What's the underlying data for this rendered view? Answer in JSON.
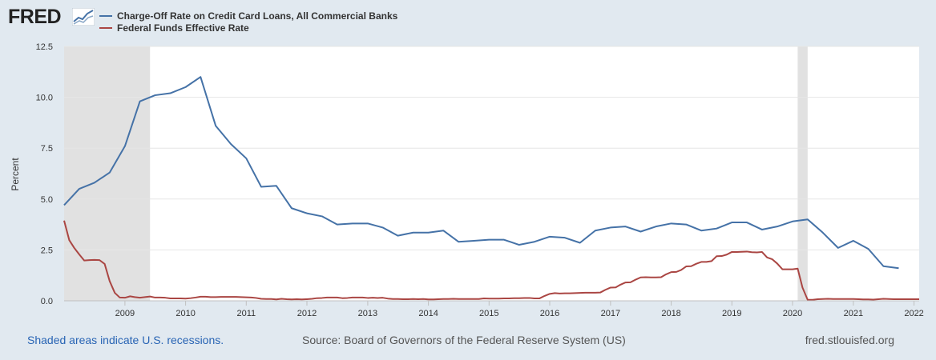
{
  "header": {
    "logo_text": "FRED",
    "logo_icon": "graph-icon"
  },
  "footer": {
    "recession_note": "Shaded areas indicate U.S. recessions.",
    "source": "Source: Board of Governors of the Federal Reserve System (US)",
    "site": "fred.stlouisfed.org"
  },
  "colors": {
    "background": "#e1e9f0",
    "plot": "#ffffff",
    "recession": "#e1e1e1",
    "series1": "#4572a7",
    "series2": "#aa4643"
  },
  "chart_data": {
    "type": "line",
    "ylabel": "Percent",
    "xlabel": "",
    "ylim": [
      0,
      12.5
    ],
    "xlim": [
      "2008-01-01",
      "2022-02-01"
    ],
    "yticks": [
      0,
      2.5,
      5,
      7.5,
      10,
      12.5
    ],
    "ytick_labels": [
      "0.0",
      "2.5",
      "5.0",
      "7.5",
      "10.0",
      "12.5"
    ],
    "xticks": [
      "2009-01-01",
      "2010-01-01",
      "2011-01-01",
      "2012-01-01",
      "2013-01-01",
      "2014-01-01",
      "2015-01-01",
      "2016-01-01",
      "2017-01-01",
      "2018-01-01",
      "2019-01-01",
      "2020-01-01",
      "2021-01-01",
      "2022-01-01"
    ],
    "xtick_labels": [
      "2009",
      "2010",
      "2011",
      "2012",
      "2013",
      "2014",
      "2015",
      "2016",
      "2017",
      "2018",
      "2019",
      "2020",
      "2021",
      "2022"
    ],
    "grid": true,
    "legend": "top-left",
    "recessions": [
      {
        "start": "2008-01-01",
        "end": "2009-06-01"
      },
      {
        "start": "2020-02-01",
        "end": "2020-04-01"
      }
    ],
    "series": [
      {
        "name": "Charge-Off Rate on Credit Card Loans, All Commercial Banks",
        "color": "#4572a7",
        "points": [
          [
            "2008-01-01",
            4.7
          ],
          [
            "2008-04-01",
            5.5
          ],
          [
            "2008-07-01",
            5.8
          ],
          [
            "2008-10-01",
            6.3
          ],
          [
            "2009-01-01",
            7.6
          ],
          [
            "2009-04-01",
            9.8
          ],
          [
            "2009-07-01",
            10.1
          ],
          [
            "2009-10-01",
            10.2
          ],
          [
            "2010-01-01",
            10.5
          ],
          [
            "2010-04-01",
            11.0
          ],
          [
            "2010-07-01",
            8.6
          ],
          [
            "2010-10-01",
            7.7
          ],
          [
            "2011-01-01",
            7.0
          ],
          [
            "2011-04-01",
            5.6
          ],
          [
            "2011-07-01",
            5.65
          ],
          [
            "2011-10-01",
            4.55
          ],
          [
            "2012-01-01",
            4.3
          ],
          [
            "2012-04-01",
            4.15
          ],
          [
            "2012-07-01",
            3.75
          ],
          [
            "2012-10-01",
            3.8
          ],
          [
            "2013-01-01",
            3.8
          ],
          [
            "2013-04-01",
            3.6
          ],
          [
            "2013-07-01",
            3.2
          ],
          [
            "2013-10-01",
            3.35
          ],
          [
            "2014-01-01",
            3.35
          ],
          [
            "2014-04-01",
            3.45
          ],
          [
            "2014-07-01",
            2.9
          ],
          [
            "2014-10-01",
            2.95
          ],
          [
            "2015-01-01",
            3.0
          ],
          [
            "2015-04-01",
            3.0
          ],
          [
            "2015-07-01",
            2.75
          ],
          [
            "2015-10-01",
            2.9
          ],
          [
            "2016-01-01",
            3.15
          ],
          [
            "2016-04-01",
            3.1
          ],
          [
            "2016-07-01",
            2.85
          ],
          [
            "2016-10-01",
            3.45
          ],
          [
            "2017-01-01",
            3.6
          ],
          [
            "2017-04-01",
            3.65
          ],
          [
            "2017-07-01",
            3.4
          ],
          [
            "2017-10-01",
            3.65
          ],
          [
            "2018-01-01",
            3.8
          ],
          [
            "2018-04-01",
            3.75
          ],
          [
            "2018-07-01",
            3.45
          ],
          [
            "2018-10-01",
            3.55
          ],
          [
            "2019-01-01",
            3.85
          ],
          [
            "2019-04-01",
            3.85
          ],
          [
            "2019-07-01",
            3.5
          ],
          [
            "2019-10-01",
            3.65
          ],
          [
            "2020-01-01",
            3.9
          ],
          [
            "2020-04-01",
            4.0
          ],
          [
            "2020-07-01",
            3.35
          ],
          [
            "2020-10-01",
            2.6
          ],
          [
            "2021-01-01",
            2.95
          ],
          [
            "2021-04-01",
            2.55
          ],
          [
            "2021-07-01",
            1.7
          ],
          [
            "2021-10-01",
            1.6
          ]
        ]
      },
      {
        "name": "Federal Funds Effective Rate",
        "color": "#aa4643",
        "points": [
          [
            "2008-01-01",
            3.94
          ],
          [
            "2008-02-01",
            2.98
          ],
          [
            "2008-03-01",
            2.61
          ],
          [
            "2008-04-01",
            2.28
          ],
          [
            "2008-05-01",
            1.98
          ],
          [
            "2008-06-01",
            2.0
          ],
          [
            "2008-07-01",
            2.01
          ],
          [
            "2008-08-01",
            2.0
          ],
          [
            "2008-09-01",
            1.81
          ],
          [
            "2008-10-01",
            0.97
          ],
          [
            "2008-11-01",
            0.39
          ],
          [
            "2008-12-01",
            0.16
          ],
          [
            "2009-01-01",
            0.15
          ],
          [
            "2009-02-01",
            0.22
          ],
          [
            "2009-03-01",
            0.18
          ],
          [
            "2009-04-01",
            0.15
          ],
          [
            "2009-05-01",
            0.18
          ],
          [
            "2009-06-01",
            0.21
          ],
          [
            "2009-07-01",
            0.16
          ],
          [
            "2009-08-01",
            0.16
          ],
          [
            "2009-09-01",
            0.15
          ],
          [
            "2009-10-01",
            0.12
          ],
          [
            "2009-11-01",
            0.12
          ],
          [
            "2009-12-01",
            0.12
          ],
          [
            "2010-01-01",
            0.11
          ],
          [
            "2010-02-01",
            0.13
          ],
          [
            "2010-03-01",
            0.16
          ],
          [
            "2010-04-01",
            0.2
          ],
          [
            "2010-05-01",
            0.2
          ],
          [
            "2010-06-01",
            0.18
          ],
          [
            "2010-07-01",
            0.18
          ],
          [
            "2010-08-01",
            0.19
          ],
          [
            "2010-09-01",
            0.19
          ],
          [
            "2010-10-01",
            0.19
          ],
          [
            "2010-11-01",
            0.19
          ],
          [
            "2010-12-01",
            0.18
          ],
          [
            "2011-01-01",
            0.17
          ],
          [
            "2011-02-01",
            0.16
          ],
          [
            "2011-03-01",
            0.14
          ],
          [
            "2011-04-01",
            0.1
          ],
          [
            "2011-05-01",
            0.09
          ],
          [
            "2011-06-01",
            0.09
          ],
          [
            "2011-07-01",
            0.07
          ],
          [
            "2011-08-01",
            0.1
          ],
          [
            "2011-09-01",
            0.08
          ],
          [
            "2011-10-01",
            0.07
          ],
          [
            "2011-11-01",
            0.08
          ],
          [
            "2011-12-01",
            0.07
          ],
          [
            "2012-01-01",
            0.08
          ],
          [
            "2012-02-01",
            0.1
          ],
          [
            "2012-03-01",
            0.13
          ],
          [
            "2012-04-01",
            0.14
          ],
          [
            "2012-05-01",
            0.16
          ],
          [
            "2012-06-01",
            0.16
          ],
          [
            "2012-07-01",
            0.16
          ],
          [
            "2012-08-01",
            0.13
          ],
          [
            "2012-09-01",
            0.14
          ],
          [
            "2012-10-01",
            0.16
          ],
          [
            "2012-11-01",
            0.16
          ],
          [
            "2012-12-01",
            0.16
          ],
          [
            "2013-01-01",
            0.14
          ],
          [
            "2013-02-01",
            0.15
          ],
          [
            "2013-03-01",
            0.14
          ],
          [
            "2013-04-01",
            0.15
          ],
          [
            "2013-05-01",
            0.11
          ],
          [
            "2013-06-01",
            0.09
          ],
          [
            "2013-07-01",
            0.09
          ],
          [
            "2013-08-01",
            0.08
          ],
          [
            "2013-09-01",
            0.08
          ],
          [
            "2013-10-01",
            0.09
          ],
          [
            "2013-11-01",
            0.08
          ],
          [
            "2013-12-01",
            0.09
          ],
          [
            "2014-01-01",
            0.07
          ],
          [
            "2014-02-01",
            0.07
          ],
          [
            "2014-03-01",
            0.08
          ],
          [
            "2014-04-01",
            0.09
          ],
          [
            "2014-05-01",
            0.09
          ],
          [
            "2014-06-01",
            0.1
          ],
          [
            "2014-07-01",
            0.09
          ],
          [
            "2014-08-01",
            0.09
          ],
          [
            "2014-09-01",
            0.09
          ],
          [
            "2014-10-01",
            0.09
          ],
          [
            "2014-11-01",
            0.09
          ],
          [
            "2014-12-01",
            0.12
          ],
          [
            "2015-01-01",
            0.11
          ],
          [
            "2015-02-01",
            0.11
          ],
          [
            "2015-03-01",
            0.11
          ],
          [
            "2015-04-01",
            0.12
          ],
          [
            "2015-05-01",
            0.12
          ],
          [
            "2015-06-01",
            0.13
          ],
          [
            "2015-07-01",
            0.13
          ],
          [
            "2015-08-01",
            0.14
          ],
          [
            "2015-09-01",
            0.14
          ],
          [
            "2015-10-01",
            0.12
          ],
          [
            "2015-11-01",
            0.12
          ],
          [
            "2015-12-01",
            0.24
          ],
          [
            "2016-01-01",
            0.34
          ],
          [
            "2016-02-01",
            0.38
          ],
          [
            "2016-03-01",
            0.36
          ],
          [
            "2016-04-01",
            0.37
          ],
          [
            "2016-05-01",
            0.37
          ],
          [
            "2016-06-01",
            0.38
          ],
          [
            "2016-07-01",
            0.39
          ],
          [
            "2016-08-01",
            0.4
          ],
          [
            "2016-09-01",
            0.4
          ],
          [
            "2016-10-01",
            0.4
          ],
          [
            "2016-11-01",
            0.41
          ],
          [
            "2016-12-01",
            0.54
          ],
          [
            "2017-01-01",
            0.65
          ],
          [
            "2017-02-01",
            0.66
          ],
          [
            "2017-03-01",
            0.79
          ],
          [
            "2017-04-01",
            0.9
          ],
          [
            "2017-05-01",
            0.91
          ],
          [
            "2017-06-01",
            1.04
          ],
          [
            "2017-07-01",
            1.15
          ],
          [
            "2017-08-01",
            1.16
          ],
          [
            "2017-09-01",
            1.15
          ],
          [
            "2017-10-01",
            1.15
          ],
          [
            "2017-11-01",
            1.16
          ],
          [
            "2017-12-01",
            1.3
          ],
          [
            "2018-01-01",
            1.41
          ],
          [
            "2018-02-01",
            1.42
          ],
          [
            "2018-03-01",
            1.51
          ],
          [
            "2018-04-01",
            1.69
          ],
          [
            "2018-05-01",
            1.7
          ],
          [
            "2018-06-01",
            1.82
          ],
          [
            "2018-07-01",
            1.91
          ],
          [
            "2018-08-01",
            1.91
          ],
          [
            "2018-09-01",
            1.95
          ],
          [
            "2018-10-01",
            2.19
          ],
          [
            "2018-11-01",
            2.2
          ],
          [
            "2018-12-01",
            2.27
          ],
          [
            "2019-01-01",
            2.4
          ],
          [
            "2019-02-01",
            2.4
          ],
          [
            "2019-03-01",
            2.41
          ],
          [
            "2019-04-01",
            2.42
          ],
          [
            "2019-05-01",
            2.39
          ],
          [
            "2019-06-01",
            2.38
          ],
          [
            "2019-07-01",
            2.4
          ],
          [
            "2019-08-01",
            2.13
          ],
          [
            "2019-09-01",
            2.04
          ],
          [
            "2019-10-01",
            1.83
          ],
          [
            "2019-11-01",
            1.55
          ],
          [
            "2019-12-01",
            1.55
          ],
          [
            "2020-01-01",
            1.55
          ],
          [
            "2020-02-01",
            1.58
          ],
          [
            "2020-03-01",
            0.65
          ],
          [
            "2020-04-01",
            0.05
          ],
          [
            "2020-05-01",
            0.05
          ],
          [
            "2020-06-01",
            0.08
          ],
          [
            "2020-07-01",
            0.09
          ],
          [
            "2020-08-01",
            0.1
          ],
          [
            "2020-09-01",
            0.09
          ],
          [
            "2020-10-01",
            0.09
          ],
          [
            "2020-11-01",
            0.09
          ],
          [
            "2020-12-01",
            0.09
          ],
          [
            "2021-01-01",
            0.09
          ],
          [
            "2021-02-01",
            0.08
          ],
          [
            "2021-03-01",
            0.07
          ],
          [
            "2021-04-01",
            0.07
          ],
          [
            "2021-05-01",
            0.06
          ],
          [
            "2021-06-01",
            0.08
          ],
          [
            "2021-07-01",
            0.1
          ],
          [
            "2021-08-01",
            0.09
          ],
          [
            "2021-09-01",
            0.08
          ],
          [
            "2021-10-01",
            0.08
          ],
          [
            "2021-11-01",
            0.08
          ],
          [
            "2021-12-01",
            0.08
          ],
          [
            "2022-01-01",
            0.08
          ],
          [
            "2022-02-01",
            0.08
          ]
        ]
      }
    ]
  }
}
